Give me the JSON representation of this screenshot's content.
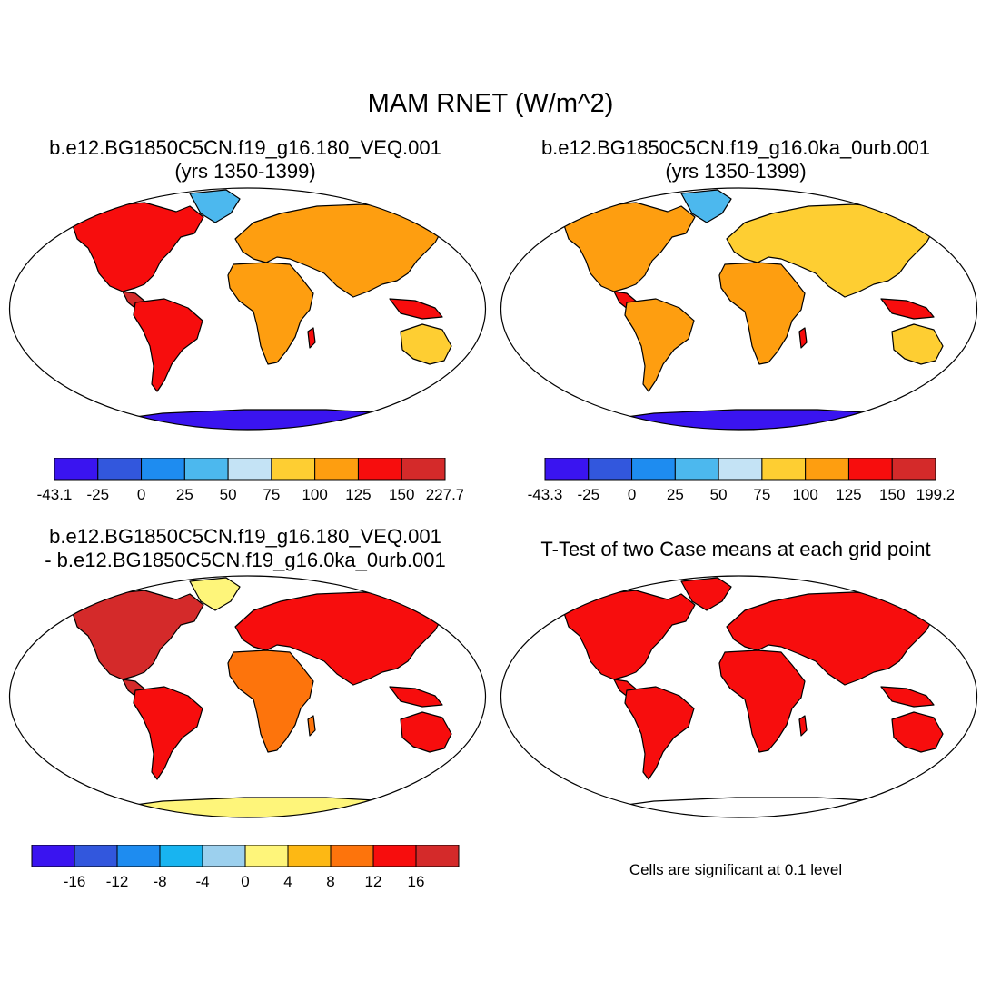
{
  "title": "MAM RNET (W/m^2)",
  "panels": [
    {
      "id": "case1",
      "title_line1": "b.e12.BG1850C5CN.f19_g16.180_VEQ.001",
      "title_line2": "(yrs 1350-1399)",
      "colorbar_labels": [
        "-43.1",
        "-25",
        "0",
        "25",
        "50",
        "75",
        "100",
        "125",
        "150",
        "227.7"
      ]
    },
    {
      "id": "case2",
      "title_line1": "b.e12.BG1850C5CN.f19_g16.0ka_0urb.001",
      "title_line2": "(yrs 1350-1399)",
      "colorbar_labels": [
        "-43.3",
        "-25",
        "0",
        "25",
        "50",
        "75",
        "100",
        "125",
        "150",
        "199.2"
      ]
    },
    {
      "id": "diff",
      "title_line1": "b.e12.BG1850C5CN.f19_g16.180_VEQ.001",
      "title_line2": "- b.e12.BG1850C5CN.f19_g16.0ka_0urb.001",
      "colorbar_labels": [
        "-16",
        "-12",
        "-8",
        "-4",
        "0",
        "4",
        "8",
        "12",
        "16"
      ]
    },
    {
      "id": "ttest",
      "title_line1": "T-Test of two Case means at each grid point",
      "note": "Cells are significant at 0.1 level"
    }
  ],
  "colors": {
    "case_scale": [
      "#3a14f0",
      "#3257dd",
      "#1e8cf0",
      "#4cb8ee",
      "#c4e3f5",
      "#fece32",
      "#fe9e10",
      "#f70d0d",
      "#d42a2a"
    ],
    "diff_scale": [
      "#3a14f0",
      "#3257dd",
      "#1e8cf0",
      "#18b4f0",
      "#9cd0ee",
      "#fef57a",
      "#fdb814",
      "#fd740c",
      "#f70d0d",
      "#d42a2a"
    ],
    "significant": "#f70d0d",
    "coastline": "#000000"
  }
}
